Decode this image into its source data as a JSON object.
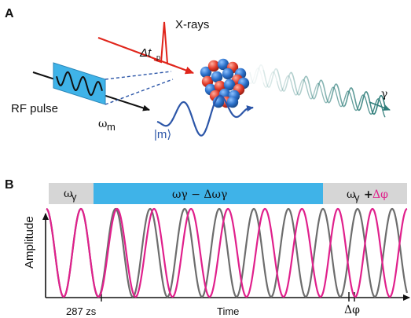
{
  "panel_a": {
    "label": "A",
    "xray_label": "X-rays",
    "dt_label": "Δt",
    "dt_sub": "p",
    "rf_label": "RF pulse",
    "omega_m_label": "ω",
    "omega_m_sub": "m",
    "m_label": "|m⟩",
    "gamma_label": "γ"
  },
  "panel_b": {
    "label": "B",
    "band_left": "ω",
    "band_left_sub": "γ",
    "band_middle": "ωγ − Δωγ",
    "band_right_a": "ω",
    "band_right_sub": "γ",
    "band_right_plus": " + ",
    "band_right_b": "Δφ",
    "y_axis_label": "Amplitude",
    "x_axis_label": "Time",
    "tick_left": "287 zs",
    "tick_right": "Δφ"
  },
  "colors": {
    "xray_red": "#e0251b",
    "rf_blue": "#3fb3e8",
    "wave_blue": "#2c56a8",
    "gamma_teal": "#2f7d7a",
    "gray_wave": "#6d6d6d",
    "magenta_wave": "#e0208c",
    "band_gray": "#d6d6d6",
    "band_blue": "#3fb3e8",
    "nucleus_blue": "#2a6fc9",
    "nucleus_red": "#e23b2a"
  }
}
